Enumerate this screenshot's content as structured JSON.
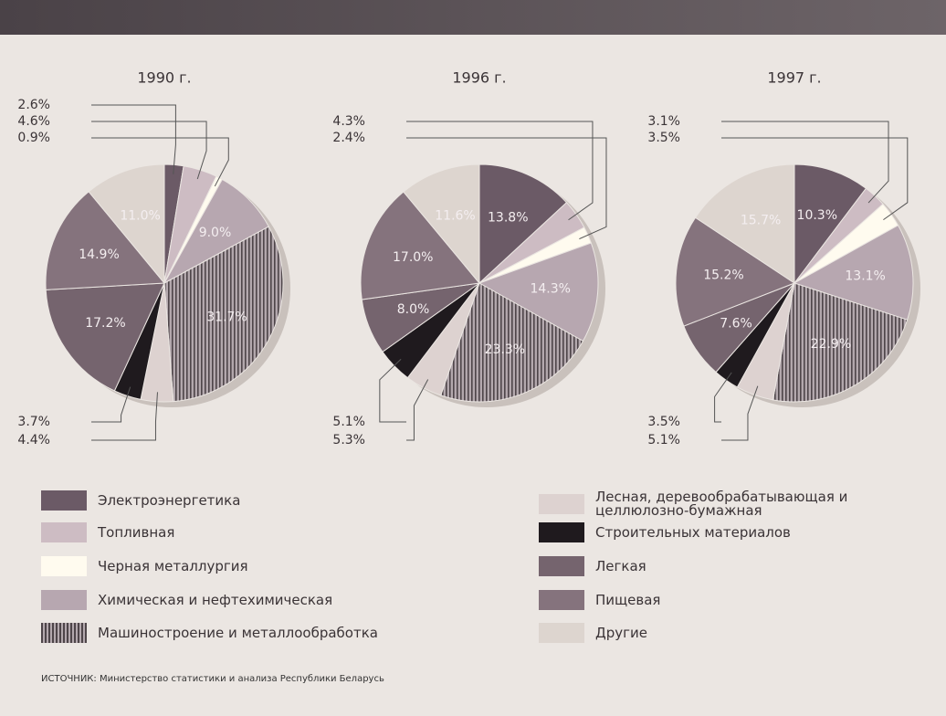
{
  "chart_data": [
    {
      "type": "pie",
      "title": "1990 г.",
      "values": [
        2.6,
        4.6,
        0.9,
        9.0,
        31.7,
        4.4,
        3.7,
        17.2,
        14.9,
        11.0
      ],
      "value_labels": [
        "2.6%",
        "4.6%",
        "0.9%",
        "9.0%",
        "31.7%",
        "4.4%",
        "3.7%",
        "17.2%",
        "14.9%",
        "11.0%"
      ]
    },
    {
      "type": "pie",
      "title": "1996 г.",
      "values": [
        13.8,
        4.3,
        2.4,
        14.3,
        23.3,
        5.3,
        5.1,
        8.0,
        17.0,
        11.6
      ],
      "value_labels": [
        "13.8%",
        "4.3%",
        "2.4%",
        "14.3%",
        "23.3%",
        "5.3%",
        "5.1%",
        "8.0%",
        "17.0%",
        "11.6%"
      ]
    },
    {
      "type": "pie",
      "title": "1997 г.",
      "values": [
        10.3,
        3.1,
        3.5,
        13.1,
        22.9,
        5.1,
        3.5,
        7.6,
        15.2,
        15.7
      ],
      "value_labels": [
        "10.3%",
        "3.1%",
        "3.5%",
        "13.1%",
        "22.9%",
        "5.1%",
        "3.5%",
        "7.6%",
        "15.2%",
        "15.7%"
      ]
    }
  ],
  "legend": [
    {
      "name": "Электроэнергетика",
      "color": "#6b5a66"
    },
    {
      "name": "Топливная",
      "color": "#cdbcc3"
    },
    {
      "name": "Черная металлургия",
      "color": "#fffbef"
    },
    {
      "name": "Химическая и нефтехимическая",
      "color": "#b7a7b0"
    },
    {
      "name": "Машиностроение и металлообработка",
      "color": "#9a8e94",
      "hatch": true
    },
    {
      "name": "Лесная, деревообрабатывающая и целлюлозно-бумажная",
      "color": "#ddd2d0"
    },
    {
      "name": "Строительных материалов",
      "color": "#1f1a1e"
    },
    {
      "name": "Легкая",
      "color": "#75646e"
    },
    {
      "name": "Пищевая",
      "color": "#85737d"
    },
    {
      "name": "Другие",
      "color": "#ddd5cf"
    }
  ],
  "source": "ИСТОЧНИК: Министерство статистики и анализа Республики Беларусь"
}
